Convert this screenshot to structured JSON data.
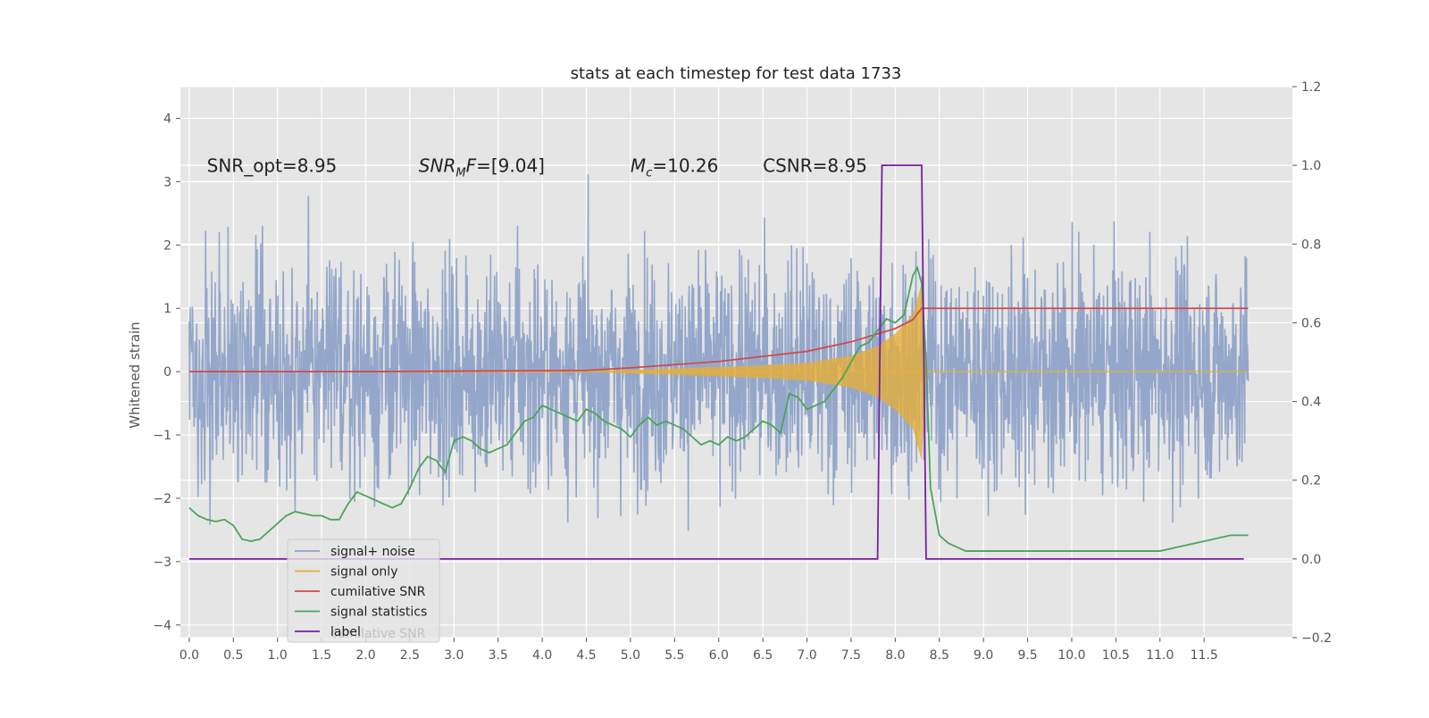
{
  "chart_data": {
    "type": "line",
    "title": "stats at each timestep for test data 1733",
    "ylabel": "Whitened strain",
    "xlabel": "",
    "xlim": [
      -0.1,
      12.5
    ],
    "ylim": [
      -4.2,
      4.5
    ],
    "y2lim": [
      -0.2,
      1.2
    ],
    "grid": true,
    "legend_position": "lower-left",
    "legend_overlap_text": "cumilative SNR",
    "x_ticks": [
      "0.0",
      "0.5",
      "1.0",
      "1.5",
      "2.0",
      "2.5",
      "3.0",
      "3.5",
      "4.0",
      "4.5",
      "5.0",
      "5.5",
      "6.0",
      "6.5",
      "7.0",
      "7.5",
      "8.0",
      "8.5",
      "9.0",
      "9.5",
      "10.0",
      "10.5",
      "11.0",
      "11.5"
    ],
    "y_ticks": [
      "4",
      "3",
      "2",
      "1",
      "0",
      "−1",
      "−2",
      "−3",
      "−4"
    ],
    "y2_ticks": [
      "1.2",
      "1.0",
      "0.8",
      "0.6",
      "0.4",
      "0.2",
      "0.0",
      "−0.2"
    ],
    "annotations": [
      {
        "prefix": "SNR_opt=",
        "value": "8.95",
        "x": 0.2
      },
      {
        "italic": "SNR",
        "sub": "M",
        "italic2": "F",
        "suffix": "=[9.04]",
        "x": 2.6
      },
      {
        "italic": "M",
        "sub": "c",
        "suffix": "=10.26",
        "x": 5.0
      },
      {
        "prefix": "CSNR=",
        "value": "8.95",
        "x": 6.5
      }
    ],
    "annotation_y": 3.15,
    "series": [
      {
        "name": "signal+ noise",
        "color": "#8fa3c8",
        "axis": "left",
        "noise_amplitude": 2.0,
        "x_range": [
          0.0,
          12.0
        ]
      },
      {
        "name": "signal only",
        "color": "#e5ae38",
        "axis": "left",
        "envelope": {
          "x": [
            4.5,
            5.5,
            6.5,
            7.0,
            7.5,
            7.8,
            8.0,
            8.2,
            8.3,
            8.35
          ],
          "amp": [
            0.005,
            0.05,
            0.1,
            0.14,
            0.25,
            0.4,
            0.6,
            0.9,
            1.4,
            0.0
          ]
        }
      },
      {
        "name": "cumilative SNR",
        "color": "#d04a4a",
        "axis": "left",
        "x": [
          0.0,
          2.0,
          4.5,
          5.0,
          6.0,
          7.0,
          7.5,
          8.0,
          8.2,
          8.3,
          12.0
        ],
        "y": [
          0.0,
          0.0,
          0.02,
          0.06,
          0.16,
          0.32,
          0.47,
          0.68,
          0.82,
          1.0,
          1.0
        ]
      },
      {
        "name": "signal statistics",
        "color": "#4aa55a",
        "axis": "right",
        "x": [
          0.0,
          0.1,
          0.2,
          0.3,
          0.4,
          0.5,
          0.6,
          0.7,
          0.8,
          0.9,
          1.0,
          1.1,
          1.2,
          1.3,
          1.4,
          1.5,
          1.6,
          1.7,
          1.8,
          1.9,
          2.0,
          2.1,
          2.2,
          2.3,
          2.4,
          2.5,
          2.6,
          2.7,
          2.8,
          2.9,
          3.0,
          3.1,
          3.2,
          3.3,
          3.4,
          3.5,
          3.6,
          3.7,
          3.8,
          3.9,
          4.0,
          4.1,
          4.2,
          4.3,
          4.4,
          4.5,
          4.6,
          4.7,
          4.8,
          4.9,
          5.0,
          5.1,
          5.2,
          5.3,
          5.4,
          5.5,
          5.6,
          5.7,
          5.8,
          5.9,
          6.0,
          6.1,
          6.2,
          6.3,
          6.4,
          6.5,
          6.6,
          6.7,
          6.8,
          6.9,
          7.0,
          7.1,
          7.2,
          7.3,
          7.4,
          7.5,
          7.6,
          7.7,
          7.8,
          7.9,
          8.0,
          8.1,
          8.2,
          8.25,
          8.3,
          8.35,
          8.4,
          8.5,
          8.6,
          8.7,
          8.8,
          9.0,
          9.5,
          10.0,
          10.5,
          11.0,
          11.2,
          11.4,
          11.6,
          11.8,
          12.0
        ],
        "y": [
          0.13,
          0.11,
          0.1,
          0.095,
          0.1,
          0.085,
          0.05,
          0.045,
          0.05,
          0.07,
          0.09,
          0.11,
          0.12,
          0.115,
          0.11,
          0.11,
          0.1,
          0.1,
          0.14,
          0.17,
          0.16,
          0.15,
          0.14,
          0.13,
          0.14,
          0.18,
          0.23,
          0.26,
          0.25,
          0.22,
          0.3,
          0.31,
          0.3,
          0.28,
          0.27,
          0.28,
          0.29,
          0.32,
          0.35,
          0.36,
          0.39,
          0.38,
          0.37,
          0.36,
          0.35,
          0.38,
          0.37,
          0.35,
          0.34,
          0.33,
          0.31,
          0.34,
          0.36,
          0.34,
          0.35,
          0.34,
          0.33,
          0.31,
          0.29,
          0.3,
          0.29,
          0.31,
          0.3,
          0.31,
          0.33,
          0.35,
          0.34,
          0.32,
          0.42,
          0.41,
          0.38,
          0.39,
          0.4,
          0.43,
          0.46,
          0.5,
          0.54,
          0.55,
          0.58,
          0.61,
          0.6,
          0.62,
          0.72,
          0.74,
          0.7,
          0.5,
          0.18,
          0.06,
          0.04,
          0.03,
          0.02,
          0.02,
          0.02,
          0.02,
          0.02,
          0.02,
          0.03,
          0.04,
          0.05,
          0.06,
          0.06
        ]
      },
      {
        "name": "label",
        "color": "#7b1fa2",
        "axis": "right",
        "x": [
          0.0,
          7.8,
          7.85,
          8.3,
          8.35,
          11.95
        ],
        "y": [
          0.0,
          0.0,
          1.0,
          1.0,
          0.0,
          0.0
        ]
      }
    ]
  }
}
